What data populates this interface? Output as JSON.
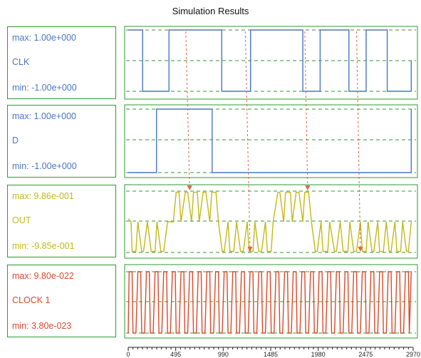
{
  "title": "Simulation Results",
  "colors": {
    "frame": "#2f9a2f",
    "guide": "#2f9a2f",
    "arrow": "#e0654a",
    "axis": "#222222"
  },
  "chart_data": {
    "type": "line",
    "title": "Simulation Results",
    "xlabel": "",
    "ylabel": "",
    "xlim": [
      0,
      2970
    ],
    "x_ticks": [
      "0",
      "495",
      "990",
      "1485",
      "1980",
      "2475",
      "2970"
    ],
    "x_tick_values": [
      0,
      495,
      990,
      1485,
      1980,
      2475,
      2970
    ],
    "grid": "dashed guides at max, mid and min of each trace",
    "panels": [
      {
        "name": "CLK",
        "max_label": "max: 1.00e+000",
        "min_label": "min: -1.00e+000",
        "color": "#4a76c4",
        "ylim": [
          -1.0,
          1.0
        ],
        "x": [
          0,
          150,
          150,
          425,
          425,
          975,
          975,
          1275,
          1275,
          1820,
          1820,
          2000,
          2000,
          2300,
          2300,
          2480,
          2480,
          2700,
          2700,
          2950,
          2950
        ],
        "y": [
          1,
          1,
          -1,
          -1,
          1,
          1,
          -1,
          -1,
          1,
          1,
          -1,
          -1,
          1,
          1,
          -1,
          -1,
          1,
          1,
          -1,
          -1,
          0
        ]
      },
      {
        "name": "D",
        "max_label": "max: 1.00e+000",
        "min_label": "min: -1.00e+000",
        "color": "#4a76c4",
        "ylim": [
          -1.0,
          1.0
        ],
        "x": [
          0,
          295,
          295,
          875,
          875,
          2950,
          2950
        ],
        "y": [
          -1,
          -1,
          1,
          1,
          -1,
          -1,
          1
        ]
      },
      {
        "name": "OUT",
        "max_label": "max: 9.86e-001",
        "min_label": "min: -9.85e-001",
        "color": "#c4b817",
        "ylim": [
          -0.985,
          0.986
        ],
        "x": [
          0,
          30,
          40,
          80,
          100,
          140,
          160,
          200,
          240,
          280,
          300,
          340,
          370,
          410,
          430,
          470,
          500,
          530,
          550,
          595,
          620,
          660,
          680,
          720,
          740,
          780,
          810,
          850,
          870,
          915,
          940,
          980,
          1000,
          1040,
          1060,
          1100,
          1130,
          1170,
          1200,
          1240,
          1260,
          1300,
          1320,
          1360,
          1390,
          1430,
          1450,
          1490,
          1510,
          1560,
          1580,
          1620,
          1640,
          1690,
          1710,
          1750,
          1780,
          1820,
          1840,
          1880,
          1910,
          1950,
          1970,
          2010,
          2030,
          2080,
          2100,
          2150,
          2170,
          2210,
          2240,
          2290,
          2310,
          2350,
          2380,
          2420,
          2440,
          2480,
          2500,
          2540,
          2560,
          2600,
          2620,
          2660,
          2690,
          2720,
          2740,
          2780,
          2800,
          2840,
          2860,
          2900,
          2920,
          2950
        ],
        "y": [
          0.1,
          0.0,
          -0.95,
          -0.95,
          0.0,
          -0.95,
          -0.95,
          0.0,
          -0.95,
          -0.95,
          0.0,
          -0.95,
          -0.95,
          0.0,
          0.0,
          0.0,
          0.95,
          0.95,
          0.0,
          0.95,
          0.95,
          0.0,
          0.95,
          0.95,
          0.0,
          0.95,
          0.95,
          0.0,
          0.95,
          0.95,
          0.0,
          -0.95,
          -0.95,
          0.0,
          -0.95,
          -0.95,
          0.0,
          -0.95,
          -0.95,
          0.0,
          -0.95,
          -0.95,
          0.0,
          -0.95,
          -0.95,
          0.0,
          -0.95,
          -0.95,
          0.0,
          0.95,
          0.95,
          0.0,
          0.95,
          0.95,
          0.0,
          0.95,
          0.95,
          0.0,
          0.95,
          0.95,
          0.0,
          -0.95,
          -0.95,
          0.0,
          -0.95,
          -0.95,
          0.0,
          -0.95,
          -0.95,
          0.0,
          -0.95,
          -0.95,
          0.0,
          -0.95,
          -0.95,
          0.0,
          -0.95,
          -0.95,
          0.0,
          -0.95,
          -0.95,
          0.0,
          -0.95,
          -0.95,
          0.0,
          -0.95,
          -0.95,
          0.0,
          -0.95,
          -0.95,
          0.0,
          -0.95,
          -0.95,
          0.0
        ]
      },
      {
        "name": "CLOCK 1",
        "max_label": "max: 9.80e-022",
        "min_label": "min: 3.80e-023",
        "color": "#d94a2a",
        "ylim": [
          3.8e-23,
          9.8e-22
        ],
        "x": [
          0,
          10,
          40,
          50,
          80,
          100,
          130,
          140,
          170,
          190,
          220,
          230,
          260,
          280,
          310,
          320,
          350,
          370,
          400,
          410,
          440,
          460,
          490,
          500,
          530,
          550,
          580,
          590,
          620,
          640,
          670,
          680,
          710,
          730,
          760,
          770,
          800,
          820,
          850,
          860,
          890,
          910,
          940,
          950,
          980,
          1000,
          1030,
          1040,
          1070,
          1090,
          1120,
          1130,
          1160,
          1180,
          1210,
          1220,
          1250,
          1270,
          1300,
          1310,
          1340,
          1360,
          1390,
          1400,
          1430,
          1450,
          1480,
          1490,
          1520,
          1540,
          1570,
          1580,
          1610,
          1630,
          1660,
          1670,
          1700,
          1720,
          1750,
          1760,
          1790,
          1810,
          1840,
          1850,
          1880,
          1900,
          1930,
          1940,
          1970,
          1990,
          2020,
          2030,
          2060,
          2080,
          2110,
          2120,
          2150,
          2170,
          2200,
          2210,
          2240,
          2260,
          2290,
          2300,
          2330,
          2350,
          2380,
          2390,
          2420,
          2440,
          2470,
          2480,
          2510,
          2530,
          2560,
          2570,
          2600,
          2620,
          2650,
          2660,
          2690,
          2710,
          2740,
          2750,
          2780,
          2800,
          2830,
          2840,
          2870,
          2890,
          2920,
          2930,
          2950
        ],
        "y": [
          3.8e-23,
          9.8e-22,
          9.8e-22,
          3.8e-23,
          3.8e-23,
          9.8e-22,
          9.8e-22,
          3.8e-23,
          3.8e-23,
          9.8e-22,
          9.8e-22,
          3.8e-23,
          3.8e-23,
          9.8e-22,
          9.8e-22,
          3.8e-23,
          3.8e-23,
          9.8e-22,
          9.8e-22,
          3.8e-23,
          3.8e-23,
          9.8e-22,
          9.8e-22,
          3.8e-23,
          3.8e-23,
          9.8e-22,
          9.8e-22,
          3.8e-23,
          3.8e-23,
          9.8e-22,
          9.8e-22,
          3.8e-23,
          3.8e-23,
          9.8e-22,
          9.8e-22,
          3.8e-23,
          3.8e-23,
          9.8e-22,
          9.8e-22,
          3.8e-23,
          3.8e-23,
          9.8e-22,
          9.8e-22,
          3.8e-23,
          3.8e-23,
          9.8e-22,
          9.8e-22,
          3.8e-23,
          3.8e-23,
          9.8e-22,
          9.8e-22,
          3.8e-23,
          3.8e-23,
          9.8e-22,
          9.8e-22,
          3.8e-23,
          3.8e-23,
          9.8e-22,
          9.8e-22,
          3.8e-23,
          3.8e-23,
          9.8e-22,
          9.8e-22,
          3.8e-23,
          3.8e-23,
          9.8e-22,
          9.8e-22,
          3.8e-23,
          3.8e-23,
          9.8e-22,
          9.8e-22,
          3.8e-23,
          3.8e-23,
          9.8e-22,
          9.8e-22,
          3.8e-23,
          3.8e-23,
          9.8e-22,
          9.8e-22,
          3.8e-23,
          3.8e-23,
          9.8e-22,
          9.8e-22,
          3.8e-23,
          3.8e-23,
          9.8e-22,
          9.8e-22,
          3.8e-23,
          3.8e-23,
          9.8e-22,
          9.8e-22,
          3.8e-23,
          3.8e-23,
          9.8e-22,
          9.8e-22,
          3.8e-23,
          3.8e-23,
          9.8e-22,
          9.8e-22,
          3.8e-23,
          3.8e-23,
          9.8e-22,
          9.8e-22,
          3.8e-23,
          3.8e-23,
          9.8e-22,
          9.8e-22,
          3.8e-23,
          3.8e-23,
          9.8e-22,
          9.8e-22,
          3.8e-23,
          3.8e-23,
          9.8e-22,
          9.8e-22,
          3.8e-23,
          3.8e-23,
          9.8e-22,
          9.8e-22,
          3.8e-23,
          3.8e-23,
          9.8e-22,
          9.8e-22,
          3.8e-23,
          3.8e-23,
          9.8e-22,
          9.8e-22,
          3.8e-23,
          3.8e-23,
          9.8e-22,
          9.8e-22,
          3.8e-23,
          9.8e-22
        ]
      }
    ],
    "annotations": [
      {
        "type": "arrow",
        "from_panel": "CLK",
        "to_panel": "OUT",
        "from_x": 600,
        "to_x": 640,
        "to_level": "max"
      },
      {
        "type": "arrow",
        "from_panel": "CLK",
        "to_panel": "OUT",
        "from_x": 1220,
        "to_x": 1270,
        "to_level": "min"
      },
      {
        "type": "arrow",
        "from_panel": "CLK",
        "to_panel": "OUT",
        "from_x": 1840,
        "to_x": 1870,
        "to_level": "max"
      },
      {
        "type": "arrow",
        "from_panel": "CLK",
        "to_panel": "OUT",
        "from_x": 2380,
        "to_x": 2420,
        "to_level": "min"
      }
    ]
  }
}
